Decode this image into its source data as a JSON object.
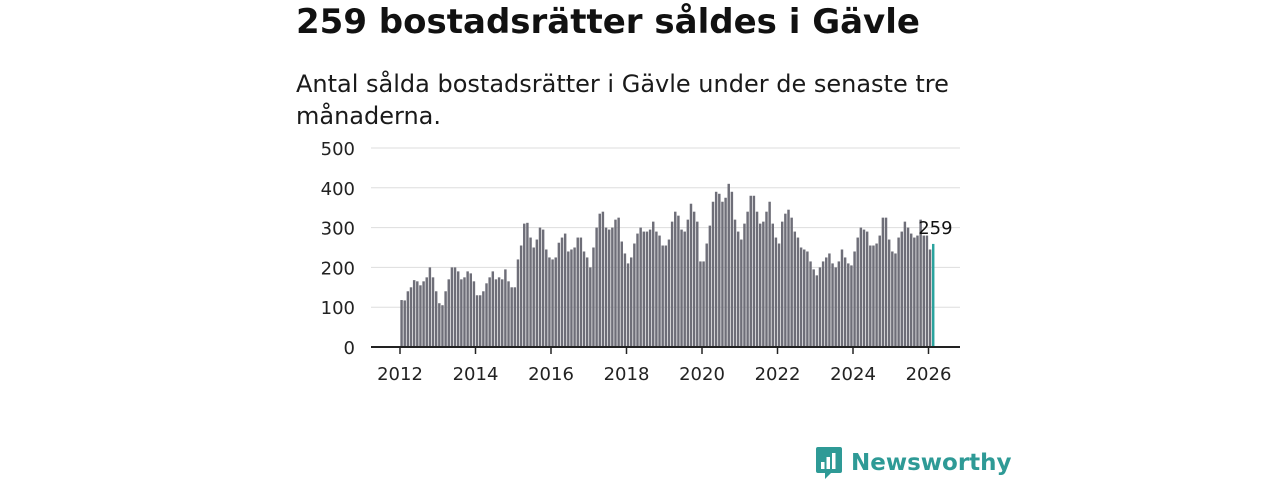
{
  "header": {
    "title": "259 bostadsrätter såldes i Gävle",
    "subtitle": "Antal sålda bostadsrätter i Gävle under de senaste tre månaderna."
  },
  "branding": {
    "logo_text": "Newsworthy",
    "logo_icon": "bar-chart-speech-bubble-icon",
    "brand_color": "#2e9a96"
  },
  "colors": {
    "bar": "#6e6e78",
    "highlight": "#2aa39e",
    "grid": "#dddddd",
    "axis": "#222222"
  },
  "chart_data": {
    "type": "bar",
    "title": "259 bostadsrätter såldes i Gävle",
    "subtitle": "Antal sålda bostadsrätter i Gävle under de senaste tre månaderna.",
    "xlabel": "",
    "ylabel": "",
    "ylim": [
      0,
      500
    ],
    "yticks": [
      0,
      100,
      200,
      300,
      400,
      500
    ],
    "xticks": [
      "2012",
      "2014",
      "2016",
      "2018",
      "2020",
      "2022",
      "2024",
      "2026"
    ],
    "xlim": [
      "2012-01",
      "2026-12"
    ],
    "start_period": "2012-01",
    "period": "month",
    "grid": true,
    "highlight_label": "259",
    "values": [
      118,
      117,
      140,
      150,
      168,
      165,
      155,
      165,
      175,
      200,
      175,
      140,
      110,
      105,
      140,
      170,
      200,
      200,
      190,
      170,
      175,
      190,
      185,
      165,
      130,
      130,
      140,
      160,
      175,
      190,
      170,
      175,
      170,
      195,
      165,
      150,
      150,
      220,
      255,
      310,
      312,
      275,
      250,
      270,
      300,
      295,
      245,
      225,
      220,
      225,
      262,
      275,
      285,
      240,
      245,
      250,
      275,
      275,
      240,
      225,
      200,
      250,
      300,
      335,
      340,
      300,
      295,
      300,
      320,
      325,
      265,
      235,
      210,
      225,
      260,
      285,
      300,
      290,
      290,
      295,
      315,
      290,
      280,
      255,
      255,
      270,
      315,
      340,
      330,
      295,
      290,
      320,
      360,
      340,
      315,
      215,
      215,
      260,
      305,
      365,
      390,
      385,
      365,
      375,
      410,
      390,
      320,
      290,
      270,
      310,
      340,
      380,
      380,
      340,
      310,
      315,
      340,
      365,
      310,
      275,
      260,
      315,
      335,
      345,
      325,
      290,
      275,
      250,
      245,
      240,
      215,
      195,
      180,
      200,
      215,
      225,
      235,
      210,
      200,
      215,
      245,
      225,
      210,
      205,
      240,
      275,
      300,
      295,
      290,
      255,
      255,
      260,
      280,
      325,
      325,
      270,
      240,
      235,
      275,
      290,
      315,
      300,
      285,
      275,
      280,
      320,
      280,
      280,
      245,
      259
    ]
  }
}
